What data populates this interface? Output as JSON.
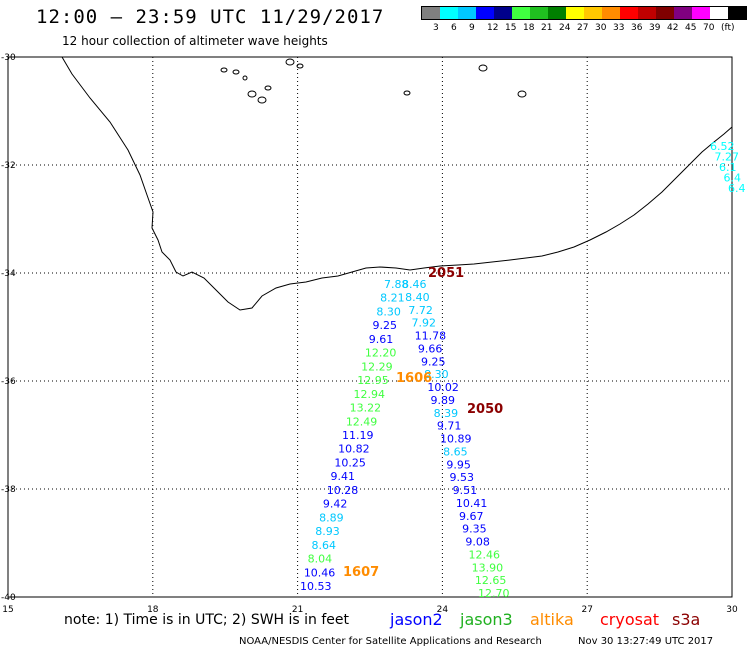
{
  "header": {
    "title": "12:00 — 23:59 UTC 11/29/2017",
    "subtitle": "12 hour collection of altimeter wave heights"
  },
  "legend": {
    "colors": [
      "#808080",
      "#00ffff",
      "#00c8ff",
      "#0000ff",
      "#00008b",
      "#40ff40",
      "#20c020",
      "#008000",
      "#ffff00",
      "#ffc800",
      "#ff8c00",
      "#ff0000",
      "#c00000",
      "#800000",
      "#800080",
      "#ff00ff",
      "#ffffff",
      "#000000"
    ],
    "labels": [
      "3",
      "6",
      "9",
      "12",
      "15",
      "18",
      "21",
      "24",
      "27",
      "30",
      "33",
      "36",
      "39",
      "42",
      "45",
      "70",
      "(ft)"
    ]
  },
  "map": {
    "lon_ticks": [
      "15",
      "18",
      "21",
      "24",
      "27",
      "30"
    ],
    "lat_ticks": [
      "-30",
      "-32",
      "-34",
      "-36",
      "-38",
      "-40"
    ],
    "lon_range": [
      15,
      30
    ],
    "lat_range": [
      -30,
      -40
    ]
  },
  "time_labels": [
    {
      "text": "1607",
      "color": "#ff8c00"
    },
    {
      "text": "1606",
      "color": "#ff8c00"
    },
    {
      "text": "2051",
      "color": "#8b0000"
    },
    {
      "text": "2050",
      "color": "#8b0000"
    }
  ],
  "tracks": {
    "west": [
      "7.88",
      "8.21",
      "8.30",
      "9.25",
      "9.61",
      "12.20",
      "12.29",
      "12.95",
      "12.94",
      "13.22",
      "12.49",
      "11.19",
      "10.82",
      "10.25",
      "9.41",
      "10.28",
      "9.42",
      "8.89",
      "8.93",
      "8.64",
      "8.04",
      "10.46",
      "10.53"
    ],
    "east": [
      "8.46",
      "8.40",
      "7.72",
      "7.92",
      "11.78",
      "9.66",
      "9.25",
      "8.30",
      "10.02",
      "9.89",
      "8.39",
      "9.71",
      "10.89",
      "8.65",
      "9.95",
      "9.53",
      "9.51",
      "10.41",
      "9.67",
      "9.35",
      "9.08",
      "12.46",
      "13.90",
      "12.65",
      "12.70"
    ],
    "edge": [
      "6.52",
      "7.27",
      "6.1",
      "6.4",
      "6.4"
    ]
  },
  "footer": {
    "note": "note: 1) Time is in UTC; 2) SWH is in feet",
    "satellites": [
      {
        "name": "jason2",
        "color": "#0000ff"
      },
      {
        "name": "jason3",
        "color": "#20b020"
      },
      {
        "name": "altika",
        "color": "#ff8c00"
      },
      {
        "name": "cryosat",
        "color": "#ff0000"
      },
      {
        "name": "s3a",
        "color": "#8b0000"
      }
    ],
    "credit": "NOAA/NESDIS Center for Satellite Applications and Research",
    "timestamp": "Nov 30 13:27:49 UTC 2017"
  }
}
